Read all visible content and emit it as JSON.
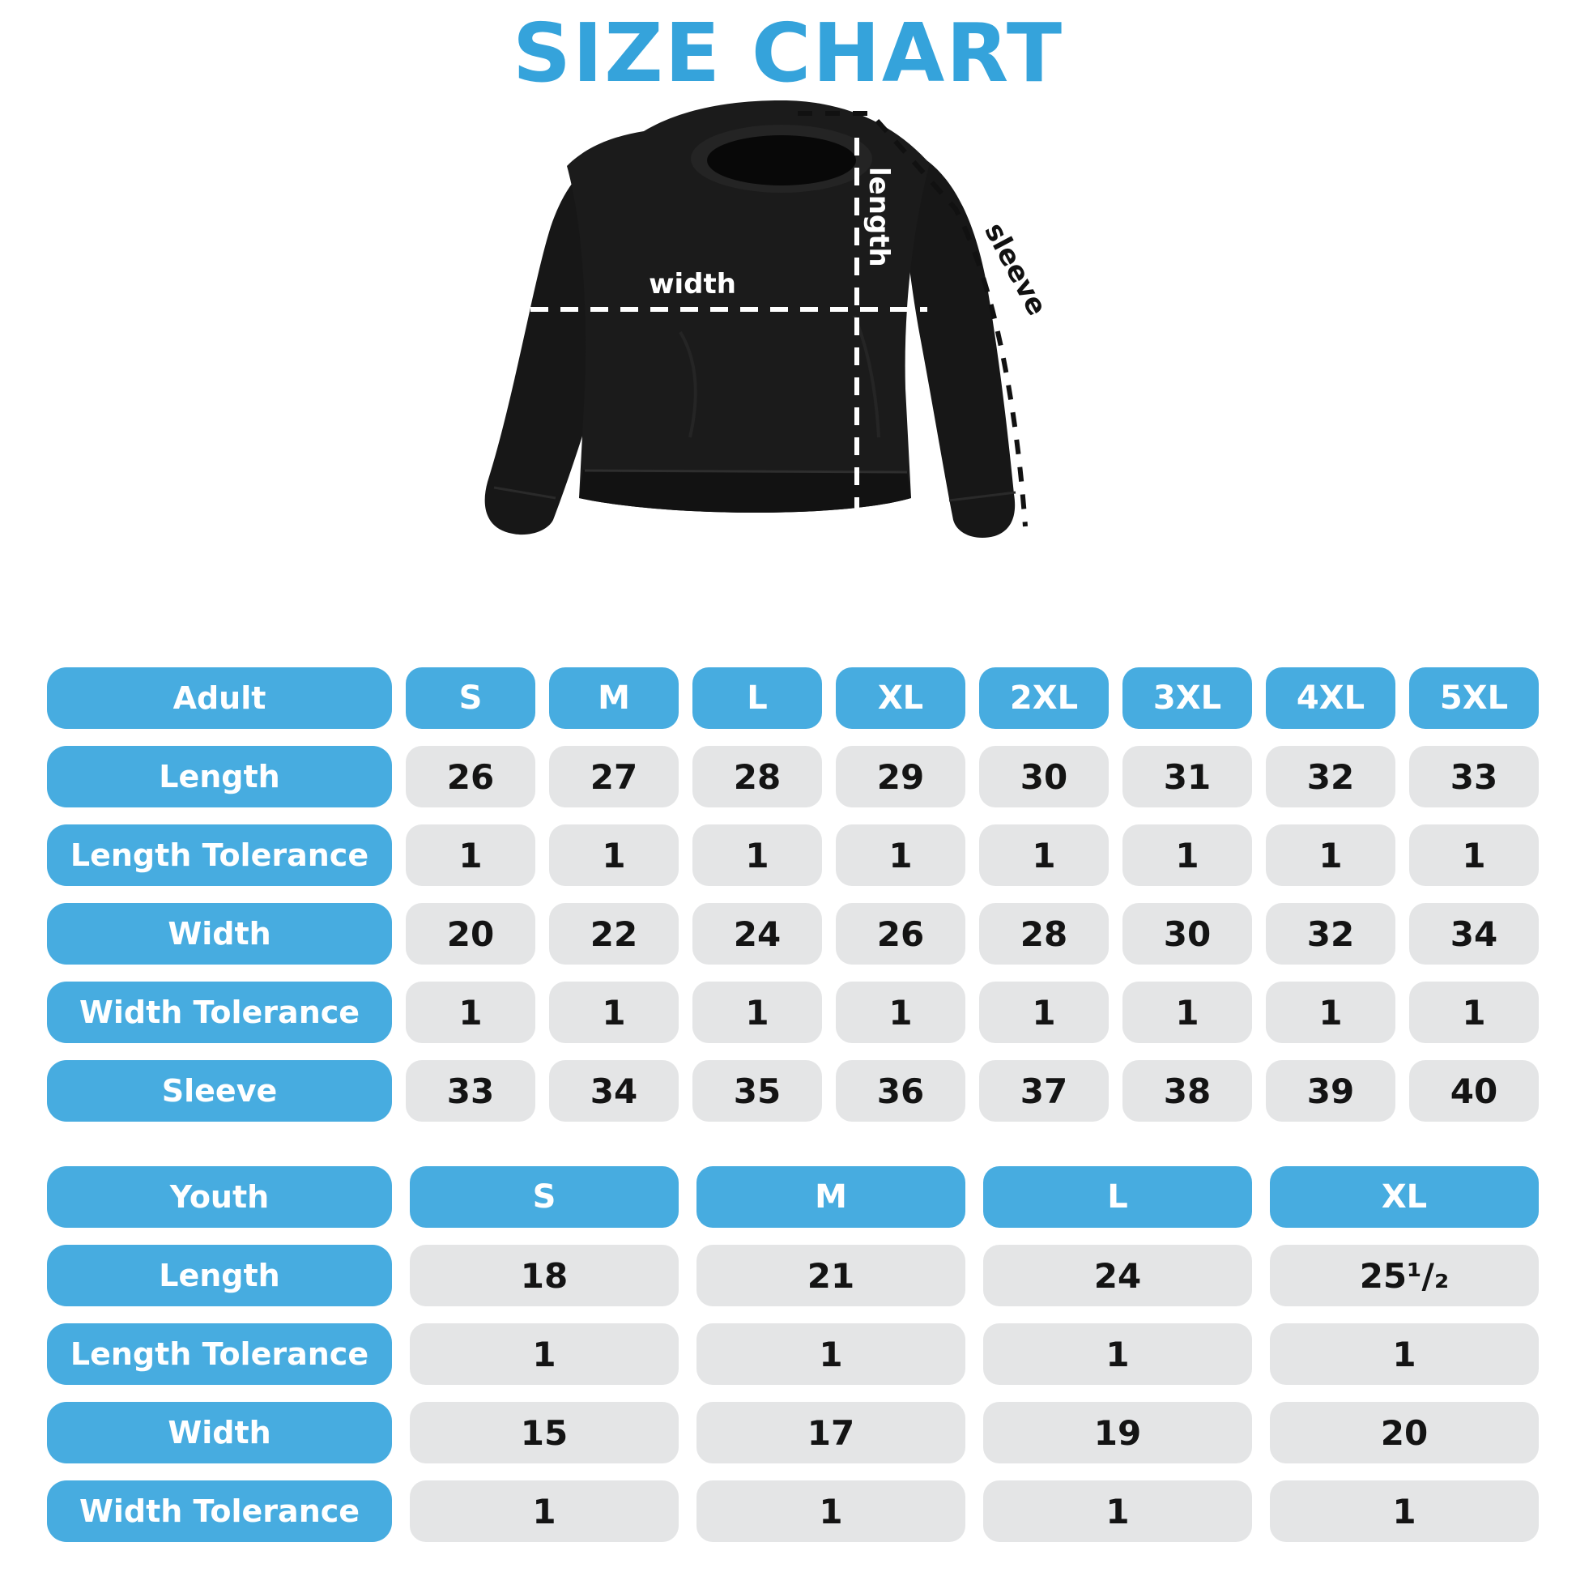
{
  "title": "SIZE CHART",
  "colors": {
    "title_blue": "#35a3db",
    "accent_blue": "#47ace0",
    "cell_gray": "#e4e5e6",
    "text_dark": "#141414",
    "shirt_black": "#1b1b1b"
  },
  "diagram": {
    "width_label": "width",
    "length_label": "length",
    "sleeve_label": "sleeve"
  },
  "adult_table": {
    "header": {
      "label": "Adult",
      "sizes": [
        "S",
        "M",
        "L",
        "XL",
        "2XL",
        "3XL",
        "4XL",
        "5XL"
      ]
    },
    "rows": [
      {
        "label": "Length",
        "values": [
          "26",
          "27",
          "28",
          "29",
          "30",
          "31",
          "32",
          "33"
        ]
      },
      {
        "label": "Length Tolerance",
        "values": [
          "1",
          "1",
          "1",
          "1",
          "1",
          "1",
          "1",
          "1"
        ]
      },
      {
        "label": "Width",
        "values": [
          "20",
          "22",
          "24",
          "26",
          "28",
          "30",
          "32",
          "34"
        ]
      },
      {
        "label": "Width Tolerance",
        "values": [
          "1",
          "1",
          "1",
          "1",
          "1",
          "1",
          "1",
          "1"
        ]
      },
      {
        "label": "Sleeve",
        "values": [
          "33",
          "34",
          "35",
          "36",
          "37",
          "38",
          "39",
          "40"
        ]
      }
    ]
  },
  "youth_table": {
    "header": {
      "label": "Youth",
      "sizes": [
        "S",
        "M",
        "L",
        "XL"
      ]
    },
    "rows": [
      {
        "label": "Length",
        "values": [
          "18",
          "21",
          "24",
          "25¹/₂"
        ]
      },
      {
        "label": "Length Tolerance",
        "values": [
          "1",
          "1",
          "1",
          "1"
        ]
      },
      {
        "label": "Width",
        "values": [
          "15",
          "17",
          "19",
          "20"
        ]
      },
      {
        "label": "Width Tolerance",
        "values": [
          "1",
          "1",
          "1",
          "1"
        ]
      }
    ]
  }
}
